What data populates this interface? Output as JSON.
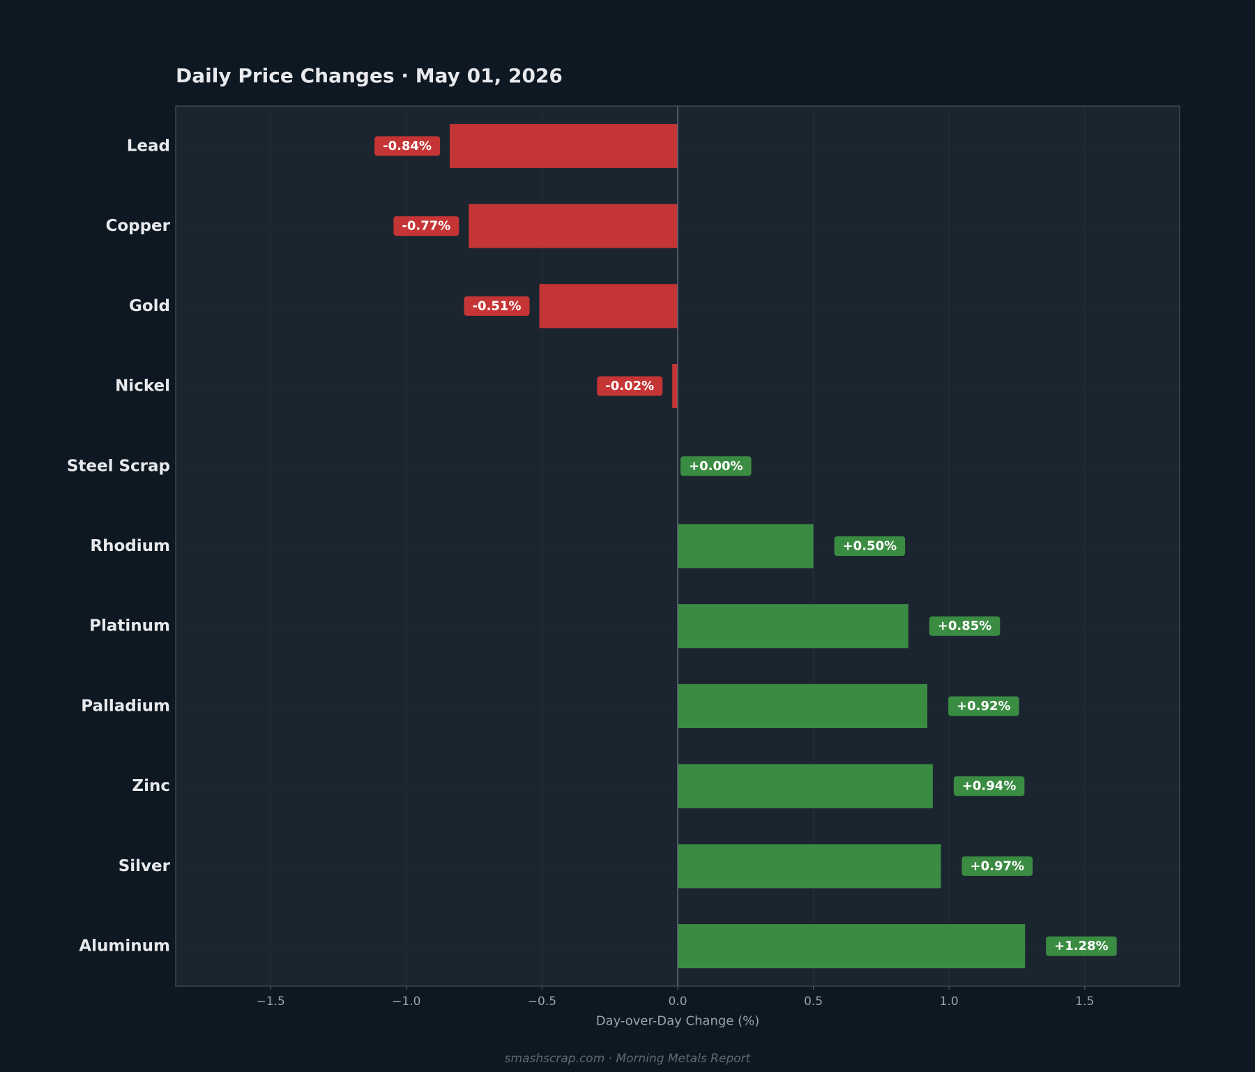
{
  "header": {
    "title": "Daily Price Changes  ·  May 01, 2026"
  },
  "footer": {
    "text": "smashscrap.com  ·  Morning Metals Report"
  },
  "colors": {
    "background": "#0e1822",
    "plot_background": "#1b2530",
    "negative": "#c63535",
    "positive": "#3b8c43",
    "zero_line": "#5c6976",
    "frame": "#3b4652"
  },
  "chart_data": {
    "type": "bar",
    "orientation": "horizontal",
    "title": "Daily Price Changes  ·  May 01, 2026",
    "xlabel": "Day-over-Day Change (%)",
    "ylabel": "",
    "xlim": [
      -1.85,
      1.85
    ],
    "xticks": [
      -1.5,
      -1.0,
      -0.5,
      0.0,
      0.5,
      1.0,
      1.5
    ],
    "xtick_labels": [
      "−1.5",
      "−1.0",
      "−0.5",
      "0.0",
      "0.5",
      "1.0",
      "1.5"
    ],
    "grid": true,
    "categories": [
      "Lead",
      "Copper",
      "Gold",
      "Nickel",
      "Steel Scrap",
      "Rhodium",
      "Platinum",
      "Palladium",
      "Zinc",
      "Silver",
      "Aluminum"
    ],
    "values": [
      -0.84,
      -0.77,
      -0.51,
      -0.02,
      0.0,
      0.5,
      0.85,
      0.92,
      0.94,
      0.97,
      1.28
    ],
    "value_labels": [
      "-0.84%",
      "-0.77%",
      "-0.51%",
      "-0.02%",
      "+0.00%",
      "+0.50%",
      "+0.85%",
      "+0.92%",
      "+0.94%",
      "+0.97%",
      "+1.28%"
    ]
  }
}
